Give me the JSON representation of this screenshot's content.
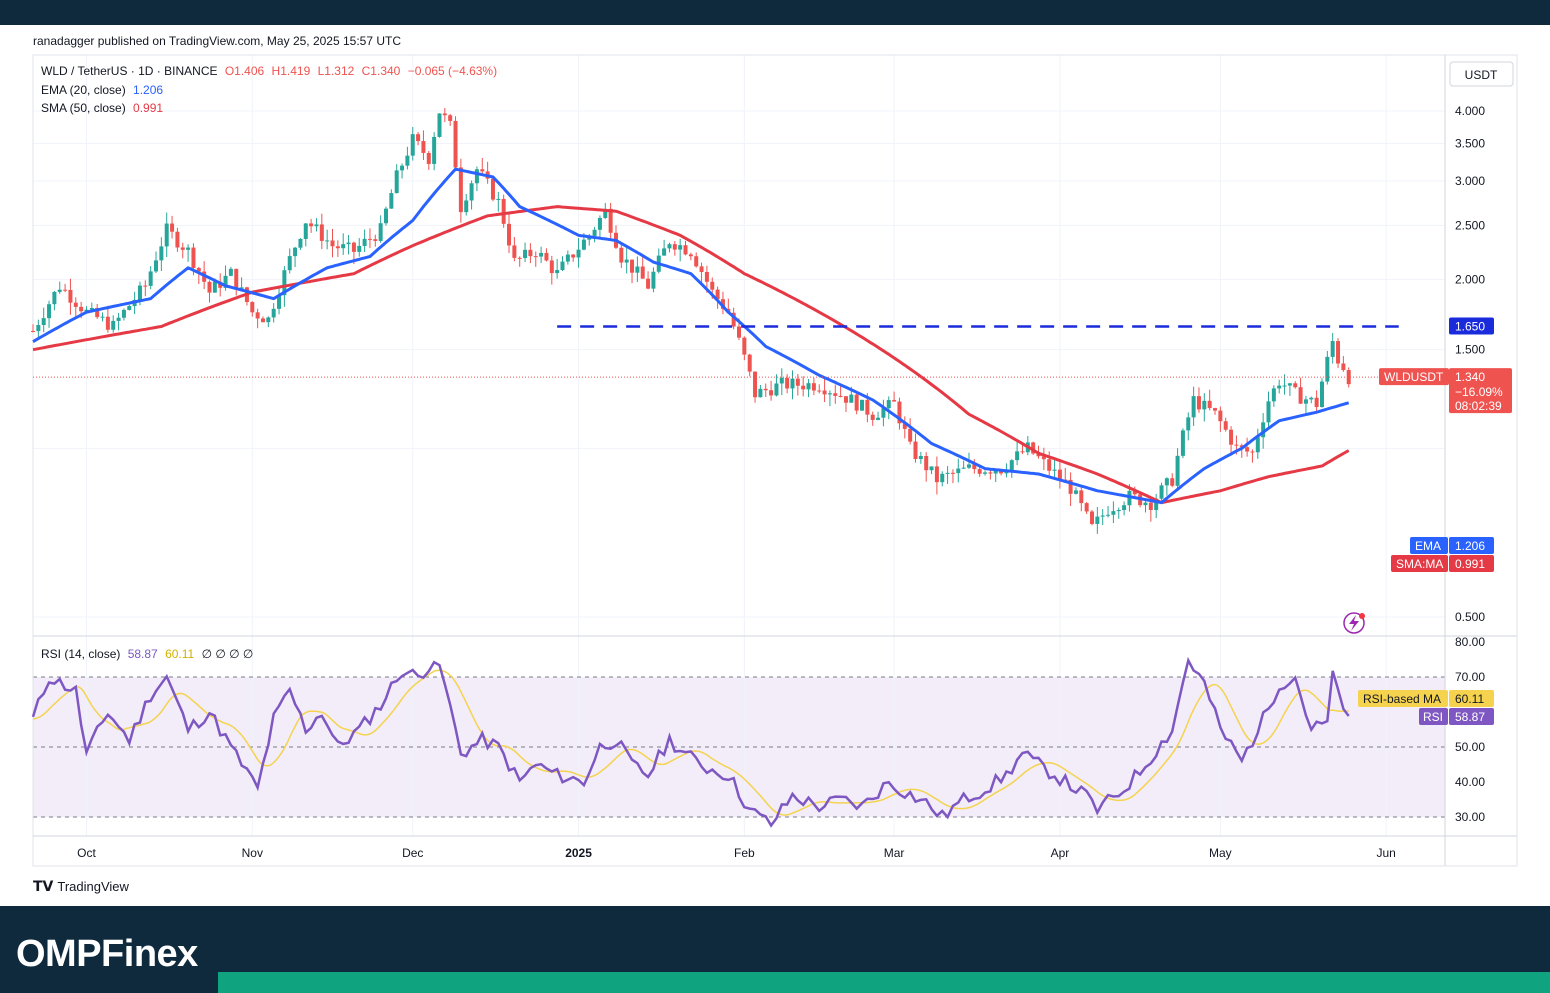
{
  "publisher_line": "ranadagger published on TradingView.com, May 25, 2025 15:57 UTC",
  "legend": {
    "symbol": "WLD / TetherUS · 1D · BINANCE",
    "open": "O1.406",
    "high": "H1.419",
    "low": "L1.312",
    "close": "C1.340",
    "change": "−0.065 (−4.63%)",
    "ema_label": "EMA (20, close)",
    "ema_value": "1.206",
    "sma_label": "SMA (50, close)",
    "sma_value": "0.991",
    "rsi_label": "RSI (14, close)",
    "rsi_value": "58.87",
    "rsi_ma_value": "60.11",
    "rsi_extra": "∅ ∅ ∅ ∅"
  },
  "currency": "USDT",
  "branding": {
    "tv": "TradingView",
    "site_a": "OMPF",
    "site_b": "inex"
  },
  "colors": {
    "up": "#26a69a",
    "down": "#ef5350",
    "ema": "#2962ff",
    "sma": "#e53945",
    "rsi": "#7e57c2",
    "rsi_ma": "#f5d34f",
    "level": "#1a2bdb"
  },
  "chart_data": [
    {
      "type": "candlestick",
      "title": "WLD / TetherUS · 1D · BINANCE",
      "x_tick_labels": [
        "Oct",
        "Nov",
        "Dec",
        "2025",
        "Feb",
        "Mar",
        "Apr",
        "May",
        "Jun"
      ],
      "y_tick_labels": [
        "4.000",
        "3.500",
        "3.000",
        "2.500",
        "2.000",
        "1.500",
        "0.500"
      ],
      "y_scale": "log",
      "ylim": [
        0.45,
        4.3
      ],
      "horizontal_level": {
        "value": 1.65,
        "label": "1.650",
        "style": "dashed",
        "x_start": "2024-12-28",
        "x_end": "2025-05-25"
      },
      "price_labels": [
        {
          "name": "WLDUSDT",
          "value": "1.340",
          "change": "−16.09%",
          "countdown": "08:02:39"
        },
        {
          "name": "EMA",
          "value": "1.206"
        },
        {
          "name": "SMA:MA",
          "value": "0.991"
        }
      ],
      "close_anchors": [
        [
          "2024-09-21",
          1.62
        ],
        [
          "2024-09-26",
          1.95
        ],
        [
          "2024-10-01",
          1.75
        ],
        [
          "2024-10-06",
          1.65
        ],
        [
          "2024-10-12",
          1.95
        ],
        [
          "2024-10-16",
          2.45
        ],
        [
          "2024-10-20",
          2.25
        ],
        [
          "2024-10-24",
          1.9
        ],
        [
          "2024-10-28",
          2.05
        ],
        [
          "2024-11-01",
          1.75
        ],
        [
          "2024-11-04",
          1.7
        ],
        [
          "2024-11-07",
          2.05
        ],
        [
          "2024-11-11",
          2.55
        ],
        [
          "2024-11-16",
          2.3
        ],
        [
          "2024-11-20",
          2.25
        ],
        [
          "2024-11-25",
          2.45
        ],
        [
          "2024-11-28",
          3.05
        ],
        [
          "2024-12-01",
          3.55
        ],
        [
          "2024-12-04",
          3.3
        ],
        [
          "2024-12-06",
          4.0
        ],
        [
          "2024-12-08",
          3.75
        ],
        [
          "2024-12-10",
          2.7
        ],
        [
          "2024-12-13",
          3.15
        ],
        [
          "2024-12-17",
          2.75
        ],
        [
          "2024-12-20",
          2.15
        ],
        [
          "2024-12-24",
          2.25
        ],
        [
          "2024-12-28",
          2.05
        ],
        [
          "2025-01-03",
          2.4
        ],
        [
          "2025-01-06",
          2.65
        ],
        [
          "2025-01-09",
          2.2
        ],
        [
          "2025-01-14",
          1.95
        ],
        [
          "2025-01-18",
          2.35
        ],
        [
          "2025-01-22",
          2.25
        ],
        [
          "2025-01-26",
          1.9
        ],
        [
          "2025-01-29",
          1.75
        ],
        [
          "2025-02-01",
          1.45
        ],
        [
          "2025-02-03",
          1.25
        ],
        [
          "2025-02-08",
          1.3
        ],
        [
          "2025-02-15",
          1.3
        ],
        [
          "2025-02-21",
          1.22
        ],
        [
          "2025-02-25",
          1.15
        ],
        [
          "2025-03-01",
          1.2
        ],
        [
          "2025-03-04",
          1.0
        ],
        [
          "2025-03-09",
          0.88
        ],
        [
          "2025-03-15",
          0.92
        ],
        [
          "2025-03-21",
          0.92
        ],
        [
          "2025-03-26",
          1.0
        ],
        [
          "2025-03-30",
          0.92
        ],
        [
          "2025-04-03",
          0.85
        ],
        [
          "2025-04-07",
          0.72
        ],
        [
          "2025-04-10",
          0.78
        ],
        [
          "2025-04-14",
          0.82
        ],
        [
          "2025-04-18",
          0.8
        ],
        [
          "2025-04-22",
          0.88
        ],
        [
          "2025-04-26",
          1.22
        ],
        [
          "2025-04-30",
          1.15
        ],
        [
          "2025-05-04",
          1.0
        ],
        [
          "2025-05-07",
          0.98
        ],
        [
          "2025-05-10",
          1.22
        ],
        [
          "2025-05-12",
          1.32
        ],
        [
          "2025-05-15",
          1.25
        ],
        [
          "2025-05-19",
          1.2
        ],
        [
          "2025-05-22",
          1.55
        ],
        [
          "2025-05-23",
          1.44
        ],
        [
          "2025-05-24",
          1.4
        ],
        [
          "2025-05-25",
          1.34
        ]
      ],
      "ema20_anchors": [
        [
          "2024-09-21",
          1.55
        ],
        [
          "2024-10-01",
          1.75
        ],
        [
          "2024-10-13",
          1.85
        ],
        [
          "2024-10-20",
          2.1
        ],
        [
          "2024-10-27",
          1.95
        ],
        [
          "2024-11-05",
          1.85
        ],
        [
          "2024-11-15",
          2.1
        ],
        [
          "2024-11-23",
          2.2
        ],
        [
          "2024-12-01",
          2.55
        ],
        [
          "2024-12-09",
          3.15
        ],
        [
          "2024-12-16",
          3.05
        ],
        [
          "2024-12-21",
          2.7
        ],
        [
          "2025-01-01",
          2.4
        ],
        [
          "2025-01-08",
          2.35
        ],
        [
          "2025-01-15",
          2.15
        ],
        [
          "2025-01-22",
          2.05
        ],
        [
          "2025-01-29",
          1.75
        ],
        [
          "2025-02-05",
          1.52
        ],
        [
          "2025-02-15",
          1.35
        ],
        [
          "2025-02-25",
          1.22
        ],
        [
          "2025-03-08",
          1.02
        ],
        [
          "2025-03-18",
          0.92
        ],
        [
          "2025-03-28",
          0.9
        ],
        [
          "2025-04-08",
          0.84
        ],
        [
          "2025-04-20",
          0.8
        ],
        [
          "2025-04-28",
          0.92
        ],
        [
          "2025-05-05",
          1.0
        ],
        [
          "2025-05-12",
          1.12
        ],
        [
          "2025-05-19",
          1.16
        ],
        [
          "2025-05-25",
          1.206
        ]
      ],
      "sma50_anchors": [
        [
          "2024-09-21",
          1.5
        ],
        [
          "2024-10-15",
          1.65
        ],
        [
          "2024-11-01",
          1.9
        ],
        [
          "2024-11-20",
          2.05
        ],
        [
          "2024-12-01",
          2.3
        ],
        [
          "2024-12-15",
          2.6
        ],
        [
          "2024-12-28",
          2.7
        ],
        [
          "2025-01-08",
          2.65
        ],
        [
          "2025-01-20",
          2.4
        ],
        [
          "2025-02-01",
          2.05
        ],
        [
          "2025-02-15",
          1.75
        ],
        [
          "2025-03-01",
          1.45
        ],
        [
          "2025-03-15",
          1.15
        ],
        [
          "2025-03-28",
          0.98
        ],
        [
          "2025-04-08",
          0.9
        ],
        [
          "2025-04-20",
          0.8
        ],
        [
          "2025-05-01",
          0.84
        ],
        [
          "2025-05-10",
          0.89
        ],
        [
          "2025-05-20",
          0.93
        ],
        [
          "2025-05-25",
          0.991
        ]
      ],
      "series": [
        {
          "name": "WLD / TetherUS",
          "kind": "candles"
        },
        {
          "name": "EMA (20, close)",
          "kind": "line"
        },
        {
          "name": "SMA (50, close)",
          "kind": "line"
        }
      ]
    },
    {
      "type": "line",
      "title": "RSI (14, close)",
      "y_tick_labels": [
        "80.00",
        "70.00",
        "50.00",
        "40.00",
        "30.00"
      ],
      "ylim": [
        27,
        81
      ],
      "band": [
        30,
        70
      ],
      "rsi_anchors": [
        [
          "2024-09-21",
          58
        ],
        [
          "2024-09-24",
          70
        ],
        [
          "2024-09-29",
          66
        ],
        [
          "2024-10-01",
          48
        ],
        [
          "2024-10-05",
          60
        ],
        [
          "2024-10-09",
          52
        ],
        [
          "2024-10-13",
          65
        ],
        [
          "2024-10-16",
          70
        ],
        [
          "2024-10-20",
          55
        ],
        [
          "2024-10-24",
          60
        ],
        [
          "2024-10-28",
          50
        ],
        [
          "2024-11-02",
          38
        ],
        [
          "2024-11-05",
          58
        ],
        [
          "2024-11-08",
          66
        ],
        [
          "2024-11-11",
          55
        ],
        [
          "2024-11-14",
          60
        ],
        [
          "2024-11-17",
          50
        ],
        [
          "2024-11-21",
          55
        ],
        [
          "2024-11-25",
          62
        ],
        [
          "2024-11-29",
          72
        ],
        [
          "2024-12-02",
          70
        ],
        [
          "2024-12-05",
          75
        ],
        [
          "2024-12-07",
          68
        ],
        [
          "2024-12-10",
          48
        ],
        [
          "2024-12-14",
          52
        ],
        [
          "2024-12-17",
          50
        ],
        [
          "2024-12-21",
          40
        ],
        [
          "2024-12-24",
          45
        ],
        [
          "2024-12-28",
          42
        ],
        [
          "2025-01-02",
          40
        ],
        [
          "2025-01-05",
          50
        ],
        [
          "2025-01-08",
          52
        ],
        [
          "2025-01-11",
          45
        ],
        [
          "2025-01-14",
          42
        ],
        [
          "2025-01-18",
          52
        ],
        [
          "2025-01-21",
          48
        ],
        [
          "2025-01-25",
          44
        ],
        [
          "2025-01-29",
          42
        ],
        [
          "2025-02-02",
          32
        ],
        [
          "2025-02-06",
          28
        ],
        [
          "2025-02-10",
          36
        ],
        [
          "2025-02-15",
          33
        ],
        [
          "2025-02-19",
          35
        ],
        [
          "2025-02-23",
          33
        ],
        [
          "2025-02-28",
          40
        ],
        [
          "2025-03-02",
          38
        ],
        [
          "2025-03-07",
          34
        ],
        [
          "2025-03-10",
          30
        ],
        [
          "2025-03-14",
          35
        ],
        [
          "2025-03-18",
          38
        ],
        [
          "2025-03-22",
          42
        ],
        [
          "2025-03-25",
          48
        ],
        [
          "2025-03-28",
          45
        ],
        [
          "2025-04-02",
          40
        ],
        [
          "2025-04-06",
          36
        ],
        [
          "2025-04-08",
          32
        ],
        [
          "2025-04-13",
          38
        ],
        [
          "2025-04-17",
          45
        ],
        [
          "2025-04-22",
          55
        ],
        [
          "2025-04-25",
          75
        ],
        [
          "2025-04-28",
          68
        ],
        [
          "2025-05-01",
          55
        ],
        [
          "2025-05-05",
          46
        ],
        [
          "2025-05-09",
          58
        ],
        [
          "2025-05-12",
          68
        ],
        [
          "2025-05-15",
          70
        ],
        [
          "2025-05-18",
          55
        ],
        [
          "2025-05-21",
          57
        ],
        [
          "2025-05-22",
          70
        ],
        [
          "2025-05-24",
          62
        ],
        [
          "2025-05-25",
          58.87
        ]
      ],
      "series": [
        {
          "name": "RSI",
          "last_label": "58.87"
        },
        {
          "name": "RSI-based MA",
          "last_label": "60.11"
        }
      ]
    }
  ]
}
